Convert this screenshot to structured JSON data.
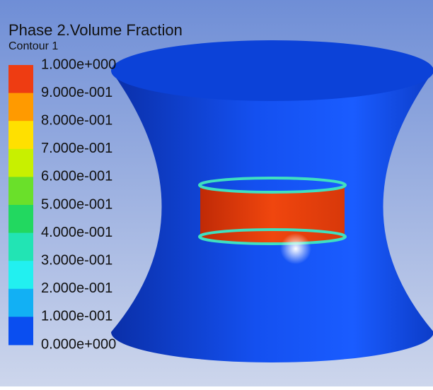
{
  "legend": {
    "title": "Phase 2.Volume Fraction",
    "subtitle": "Contour 1",
    "labels": [
      "1.000e+000",
      "9.000e-001",
      "8.000e-001",
      "7.000e-001",
      "6.000e-001",
      "5.000e-001",
      "4.000e-001",
      "3.000e-001",
      "2.000e-001",
      "1.000e-001",
      "0.000e+000"
    ],
    "colors": [
      "#ee3c12",
      "#ff9a00",
      "#ffe000",
      "#c8f000",
      "#6ae02a",
      "#22d860",
      "#22e4b4",
      "#22f0f0",
      "#12b0f4",
      "#0a4ef0"
    ]
  }
}
